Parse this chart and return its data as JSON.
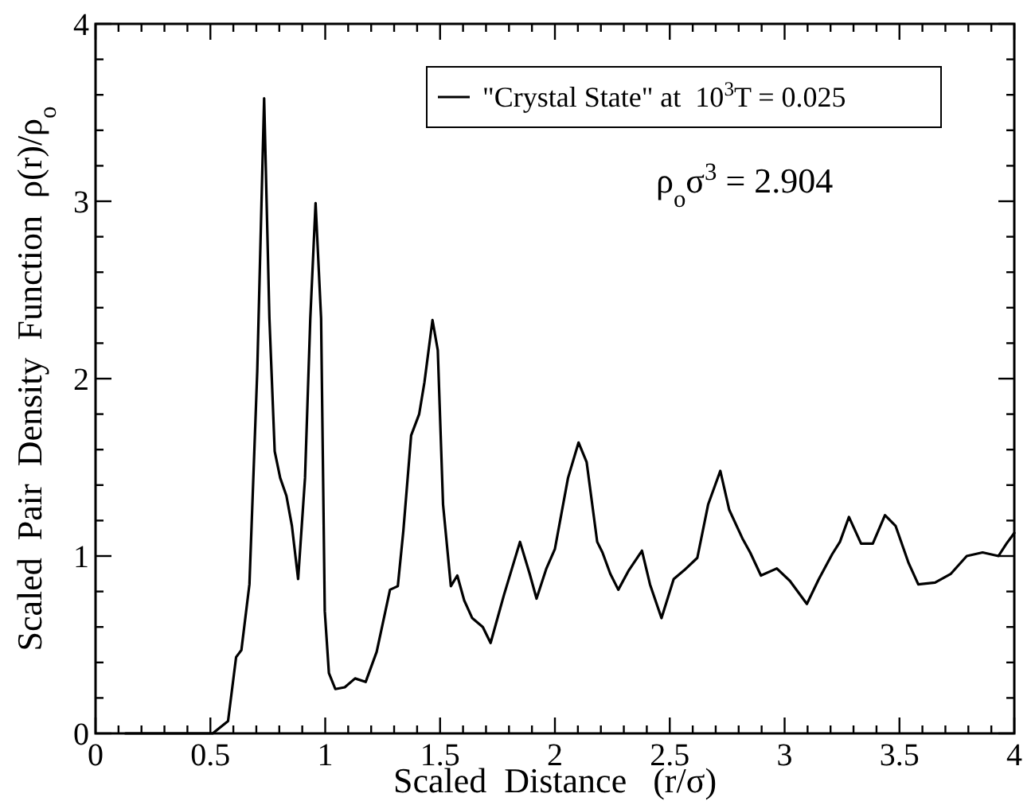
{
  "chart_data": {
    "type": "line",
    "xlabel": "Scaled  Distance   (r/σ)",
    "ylabel": "Scaled  Pair  Density  Function  ρ(r)/ρ$_{o}$",
    "annotations": [
      "ρ$_{o}$σ$^{3}$ = 2.904"
    ],
    "legend": "top right",
    "marker": "none",
    "line_style": "solid",
    "grid": false,
    "xlim": [
      0,
      4
    ],
    "ylim": [
      0,
      4
    ],
    "xticks": [
      0,
      {
        "value": 0.1,
        "label": null
      },
      {
        "value": 0.2,
        "label": null
      },
      {
        "value": 0.3,
        "label": null
      },
      {
        "value": 0.4,
        "label": null
      },
      0.5,
      {
        "value": 0.6,
        "label": null
      },
      {
        "value": 0.7,
        "label": null
      },
      {
        "value": 0.8,
        "label": null
      },
      {
        "value": 0.9,
        "label": null
      },
      1,
      {
        "value": 1.1,
        "label": null
      },
      {
        "value": 1.2,
        "label": null
      },
      {
        "value": 1.3,
        "label": null
      },
      {
        "value": 1.4,
        "label": null
      },
      1.5,
      {
        "value": 1.6,
        "label": null
      },
      {
        "value": 1.7,
        "label": null
      },
      {
        "value": 1.8,
        "label": null
      },
      {
        "value": 1.9,
        "label": null
      },
      2,
      {
        "value": 2.1,
        "label": null
      },
      {
        "value": 2.2,
        "label": null
      },
      {
        "value": 2.3,
        "label": null
      },
      {
        "value": 2.4,
        "label": null
      },
      2.5,
      {
        "value": 2.6,
        "label": null
      },
      {
        "value": 2.7,
        "label": null
      },
      {
        "value": 2.8,
        "label": null
      },
      {
        "value": 2.9,
        "label": null
      },
      3,
      {
        "value": 3.1,
        "label": null
      },
      {
        "value": 3.2,
        "label": null
      },
      {
        "value": 3.3,
        "label": null
      },
      {
        "value": 3.4,
        "label": null
      },
      3.5,
      {
        "value": 3.6,
        "label": null
      },
      {
        "value": 3.7,
        "label": null
      },
      {
        "value": 3.8,
        "label": null
      },
      {
        "value": 3.9,
        "label": null
      },
      4
    ],
    "yticks": [
      0,
      {
        "value": 0.2,
        "label": null
      },
      {
        "value": 0.4,
        "label": null
      },
      {
        "value": 0.6,
        "label": null
      },
      {
        "value": 0.8,
        "label": null
      },
      1,
      {
        "value": 1.2,
        "label": null
      },
      {
        "value": 1.4,
        "label": null
      },
      {
        "value": 1.6,
        "label": null
      },
      {
        "value": 1.8,
        "label": null
      },
      2,
      {
        "value": 2.2,
        "label": null
      },
      {
        "value": 2.4,
        "label": null
      },
      {
        "value": 2.6,
        "label": null
      },
      {
        "value": 2.8,
        "label": null
      },
      3,
      {
        "value": 3.2,
        "label": null
      },
      {
        "value": 3.4,
        "label": null
      },
      {
        "value": 3.6,
        "label": null
      },
      {
        "value": 3.8,
        "label": null
      },
      4
    ],
    "series": [
      {
        "name": "\"Crystal State\" at  10$^{3}$T = 0.025",
        "color": "#000000",
        "x": [
          0.13,
          0.51,
          0.577,
          0.612,
          0.635,
          0.67,
          0.704,
          0.734,
          0.757,
          0.78,
          0.804,
          0.831,
          0.855,
          0.882,
          0.912,
          0.935,
          0.958,
          0.982,
          0.998,
          1.016,
          1.044,
          1.085,
          1.13,
          1.176,
          1.224,
          1.282,
          1.316,
          1.34,
          1.374,
          1.409,
          1.432,
          1.467,
          1.49,
          1.513,
          1.547,
          1.575,
          1.605,
          1.64,
          1.686,
          1.72,
          1.778,
          1.848,
          1.89,
          1.92,
          1.963,
          2.0,
          2.057,
          2.103,
          2.138,
          2.184,
          2.207,
          2.241,
          2.276,
          2.322,
          2.379,
          2.414,
          2.464,
          2.517,
          2.563,
          2.62,
          2.667,
          2.72,
          2.759,
          2.816,
          2.85,
          2.897,
          2.966,
          3.023,
          3.097,
          3.149,
          3.207,
          3.241,
          3.28,
          3.333,
          3.384,
          3.437,
          3.483,
          3.54,
          3.582,
          3.655,
          3.724,
          3.793,
          3.862,
          3.931,
          3.966,
          4.0
        ],
        "values": [
          0,
          0,
          0.07,
          0.43,
          0.47,
          0.84,
          2.04,
          3.58,
          2.34,
          1.59,
          1.44,
          1.34,
          1.17,
          0.87,
          1.44,
          2.34,
          2.99,
          2.34,
          0.69,
          0.34,
          0.25,
          0.26,
          0.31,
          0.29,
          0.46,
          0.81,
          0.83,
          1.14,
          1.68,
          1.8,
          1.98,
          2.33,
          2.16,
          1.29,
          0.83,
          0.89,
          0.75,
          0.65,
          0.6,
          0.51,
          0.78,
          1.08,
          0.9,
          0.76,
          0.93,
          1.04,
          1.44,
          1.64,
          1.53,
          1.08,
          1.02,
          0.9,
          0.81,
          0.92,
          1.03,
          0.84,
          0.65,
          0.87,
          0.92,
          0.99,
          1.29,
          1.48,
          1.26,
          1.1,
          1.02,
          0.89,
          0.93,
          0.86,
          0.73,
          0.87,
          1.01,
          1.08,
          1.22,
          1.07,
          1.07,
          1.23,
          1.17,
          0.96,
          0.84,
          0.85,
          0.9,
          1.0,
          1.02,
          1.0,
          1.07,
          1.13
        ]
      }
    ]
  }
}
